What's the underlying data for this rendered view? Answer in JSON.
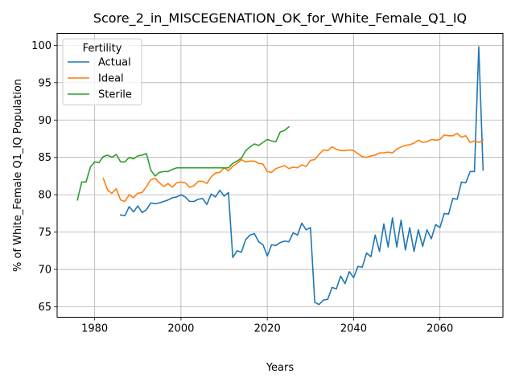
{
  "chart_data": {
    "type": "line",
    "title": "Score_2_in_MISCEGENATION_OK_for_White_Female_Q1_IQ",
    "xlabel": "Years",
    "ylabel": "% of White_Female Q1_IQ Population",
    "xlim": [
      1971.3,
      1975.0
    ],
    "ylim": [
      63.6,
      101.6
    ],
    "x_ticks": [
      1980,
      2000,
      2020,
      2040,
      2060
    ],
    "y_ticks": [
      65,
      70,
      75,
      80,
      85,
      90,
      95,
      100
    ],
    "grid": true,
    "legend": {
      "title": "Fertility",
      "placement": "top-left"
    },
    "series": [
      {
        "name": "Actual",
        "color": "#1f77b4",
        "x": [
          1986,
          1987,
          1988,
          1989,
          1990,
          1991,
          1992,
          1993,
          1994,
          1995,
          1996,
          1997,
          1998,
          1999,
          2000,
          2001,
          2002,
          2003,
          2004,
          2005,
          2006,
          2007,
          2008,
          2009,
          2010,
          2011,
          2012,
          2013,
          2014,
          2015,
          2016,
          2017,
          2018,
          2019,
          2020,
          2021,
          2022,
          2023,
          2024,
          2025,
          2026,
          2027,
          2028,
          2029,
          2030,
          2031,
          2032,
          2033,
          2034,
          2035,
          2036,
          2037,
          2038,
          2039,
          2040,
          2041,
          2042,
          2043,
          2044,
          2045,
          2046,
          2047,
          2048,
          2049,
          2050,
          2051,
          2052,
          2053,
          2054,
          2055,
          2056,
          2057,
          2058,
          2059,
          2060,
          2061,
          2062,
          2063,
          2064,
          2065,
          2066,
          2067,
          2068,
          2069,
          2070
        ],
        "values": [
          77.3,
          77.2,
          78.4,
          77.7,
          78.5,
          77.6,
          78.0,
          78.9,
          78.8,
          78.9,
          79.1,
          79.3,
          79.6,
          79.7,
          80.0,
          79.7,
          79.1,
          79.1,
          79.4,
          79.5,
          78.7,
          80.1,
          79.7,
          80.6,
          79.8,
          80.3,
          71.6,
          72.5,
          72.3,
          74.0,
          74.6,
          74.8,
          73.7,
          73.3,
          71.8,
          73.3,
          73.2,
          73.6,
          73.8,
          73.7,
          74.9,
          74.6,
          76.2,
          75.3,
          75.6,
          65.6,
          65.3,
          65.9,
          66.0,
          67.6,
          67.4,
          69.1,
          68.1,
          69.7,
          68.9,
          70.4,
          70.3,
          72.2,
          71.7,
          74.6,
          72.4,
          76.1,
          73.0,
          76.9,
          73.0,
          76.6,
          72.6,
          75.6,
          72.4,
          75.3,
          73.1,
          75.3,
          74.1,
          76.0,
          75.6,
          77.5,
          77.4,
          79.5,
          79.4,
          81.7,
          81.6,
          83.1,
          83.1,
          99.8,
          83.3
        ]
      },
      {
        "name": "Ideal",
        "color": "#ff7f0e",
        "x": [
          1982,
          1983,
          1984,
          1985,
          1986,
          1987,
          1988,
          1989,
          1990,
          1991,
          1992,
          1993,
          1994,
          1995,
          1996,
          1997,
          1998,
          1999,
          2000,
          2001,
          2002,
          2003,
          2004,
          2005,
          2006,
          2007,
          2008,
          2009,
          2010,
          2011,
          2012,
          2013,
          2014,
          2015,
          2016,
          2017,
          2018,
          2019,
          2020,
          2021,
          2022,
          2023,
          2024,
          2025,
          2026,
          2027,
          2028,
          2029,
          2030,
          2031,
          2032,
          2033,
          2034,
          2035,
          2036,
          2037,
          2038,
          2039,
          2040,
          2041,
          2042,
          2043,
          2044,
          2045,
          2046,
          2047,
          2048,
          2049,
          2050,
          2051,
          2052,
          2053,
          2054,
          2055,
          2056,
          2057,
          2058,
          2059,
          2060,
          2061,
          2062,
          2063,
          2064,
          2065,
          2066,
          2067,
          2068,
          2069,
          2070
        ],
        "values": [
          82.2,
          80.6,
          80.2,
          80.8,
          79.3,
          79.1,
          80.0,
          79.6,
          80.2,
          80.3,
          81.1,
          82.0,
          82.2,
          81.6,
          81.1,
          81.5,
          81.0,
          81.6,
          81.7,
          81.6,
          81.0,
          81.2,
          81.8,
          81.8,
          81.5,
          82.4,
          82.9,
          83.0,
          83.6,
          83.2,
          83.8,
          84.2,
          84.7,
          84.4,
          84.5,
          84.5,
          84.2,
          84.1,
          83.1,
          83.0,
          83.5,
          83.7,
          83.9,
          83.5,
          83.7,
          83.6,
          84.0,
          83.8,
          84.6,
          84.7,
          85.4,
          86.0,
          85.9,
          86.4,
          86.1,
          85.9,
          85.9,
          86.0,
          85.9,
          85.5,
          85.1,
          85.0,
          85.2,
          85.3,
          85.6,
          85.6,
          85.7,
          85.6,
          86.1,
          86.4,
          86.6,
          86.7,
          86.9,
          87.3,
          87.0,
          87.1,
          87.4,
          87.3,
          87.4,
          88.0,
          87.9,
          87.9,
          88.2,
          87.7,
          87.9,
          87.0,
          87.2,
          87.0,
          87.3
        ]
      },
      {
        "name": "Sterile",
        "color": "#2ca02c",
        "x": [
          1976,
          1977,
          1978,
          1979,
          1980,
          1981,
          1982,
          1983,
          1984,
          1985,
          1986,
          1987,
          1988,
          1989,
          1990,
          1991,
          1992,
          1993,
          1994,
          1995,
          1996,
          1997,
          1998,
          1999,
          2000,
          2001,
          2002,
          2003,
          2004,
          2005,
          2006,
          2007,
          2008,
          2009,
          2010,
          2011,
          2012,
          2013,
          2014,
          2015,
          2016,
          2017,
          2018,
          2019,
          2020,
          2021,
          2022,
          2023,
          2024,
          2025
        ],
        "values": [
          79.3,
          81.7,
          81.7,
          83.7,
          84.4,
          84.3,
          85.1,
          85.3,
          85.0,
          85.4,
          84.4,
          84.4,
          85.0,
          84.8,
          85.2,
          85.3,
          85.5,
          83.3,
          82.5,
          83.0,
          83.1,
          83.1,
          83.4,
          83.6,
          83.6,
          83.6,
          83.6,
          83.6,
          83.6,
          83.6,
          83.6,
          83.6,
          83.6,
          83.6,
          83.6,
          83.6,
          84.2,
          84.5,
          84.9,
          85.9,
          86.4,
          86.8,
          86.6,
          87.0,
          87.4,
          87.2,
          87.1,
          88.4,
          88.6,
          89.1
        ]
      }
    ]
  }
}
